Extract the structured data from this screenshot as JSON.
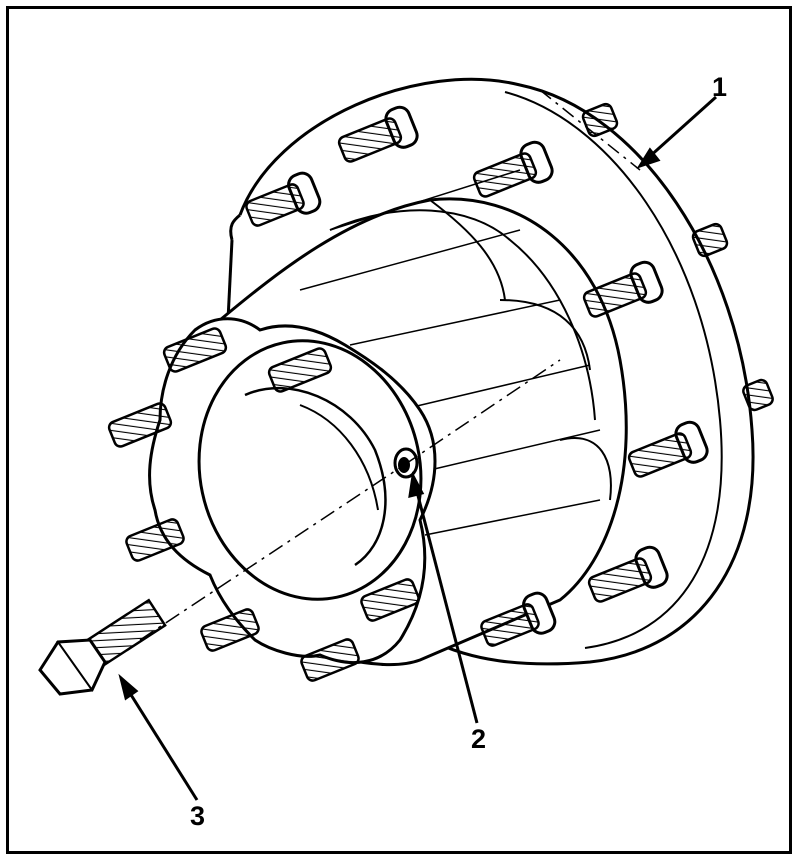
{
  "callouts": [
    {
      "id": "1",
      "label": "1"
    },
    {
      "id": "2",
      "label": "2"
    },
    {
      "id": "3",
      "label": "3"
    }
  ],
  "colors": {
    "ink": "#000000",
    "paper": "#ffffff"
  }
}
